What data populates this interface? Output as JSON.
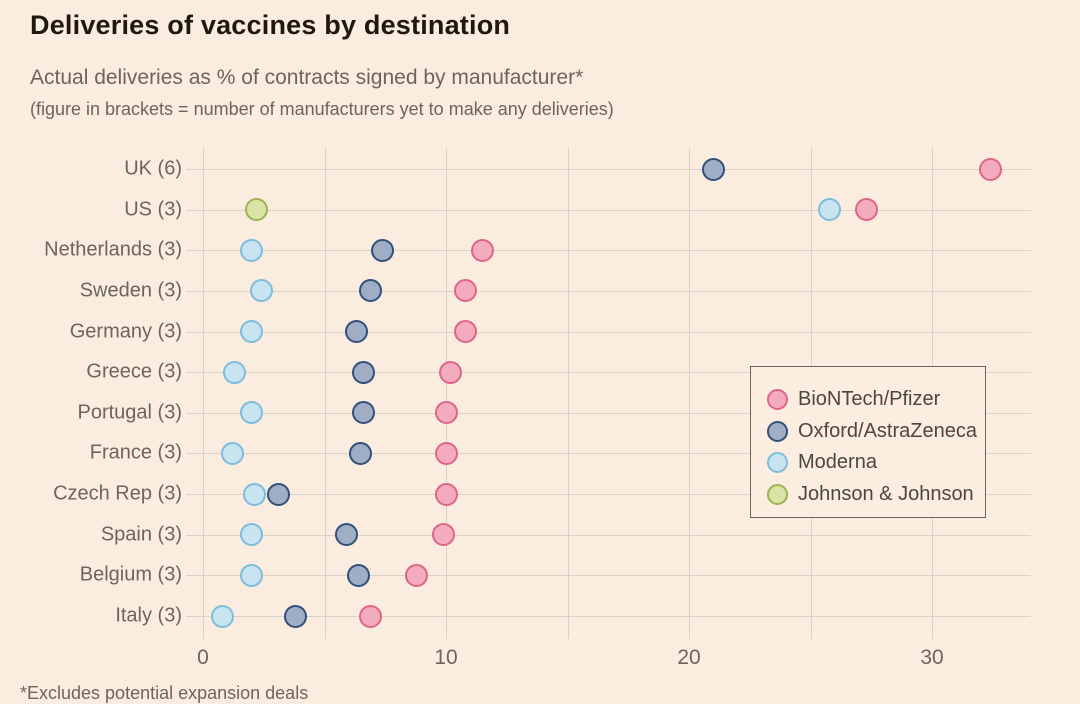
{
  "header": {
    "title": "Deliveries of vaccines by destination",
    "subtitle": "Actual deliveries as % of contracts signed by manufacturer*",
    "note": "(figure in brackets = number of manufacturers yet to make any deliveries)"
  },
  "footnote": "*Excludes potential expansion deals",
  "colors": {
    "background": "#FAEDE0",
    "gridline": "#D9D2C7",
    "title_text": "#1E1810",
    "muted_text": "#6C655D",
    "legend_text": "#4C4641"
  },
  "chart_data": {
    "type": "scatter",
    "subtype": "dot-plot",
    "title": "Deliveries of vaccines by destination",
    "subtitle": "Actual deliveries as % of contracts signed by manufacturer*",
    "note": "(figure in brackets = number of manufacturers yet to make any deliveries)",
    "xlabel": "",
    "ylabel": "",
    "categories": [
      "UK (6)",
      "US (3)",
      "Netherlands (3)",
      "Sweden (3)",
      "Germany (3)",
      "Greece (3)",
      "Portugal (3)",
      "France (3)",
      "Czech Rep (3)",
      "Spain (3)",
      "Belgium (3)",
      "Italy (3)"
    ],
    "series": [
      {
        "name": "BioNTech/Pfizer",
        "fill": "#F3ACBE",
        "stroke": "#DF6588",
        "values": [
          32.4,
          27.3,
          11.5,
          10.8,
          10.8,
          10.2,
          10.0,
          10.0,
          10.0,
          9.9,
          8.8,
          6.9
        ]
      },
      {
        "name": "Oxford/AstraZeneca",
        "fill": "#9FAEC5",
        "stroke": "#31507A",
        "values": [
          21.0,
          null,
          7.4,
          6.9,
          6.3,
          6.6,
          6.6,
          6.5,
          3.1,
          5.9,
          6.4,
          3.8
        ]
      },
      {
        "name": "Moderna",
        "fill": "#C9E4F1",
        "stroke": "#7EBCDB",
        "values": [
          null,
          25.8,
          2.0,
          2.4,
          2.0,
          1.3,
          2.0,
          1.2,
          2.1,
          2.0,
          2.0,
          0.8
        ]
      },
      {
        "name": "Johnson & Johnson",
        "fill": "#DBE4A4",
        "stroke": "#9DB156",
        "values": [
          null,
          2.2,
          null,
          null,
          null,
          null,
          null,
          null,
          null,
          null,
          null,
          null
        ]
      }
    ],
    "xticks": [
      0,
      10,
      20,
      30
    ],
    "grid_interval": 5,
    "xlim": [
      -0.75,
      34
    ],
    "grid": true,
    "legend_position": "inside-right"
  }
}
